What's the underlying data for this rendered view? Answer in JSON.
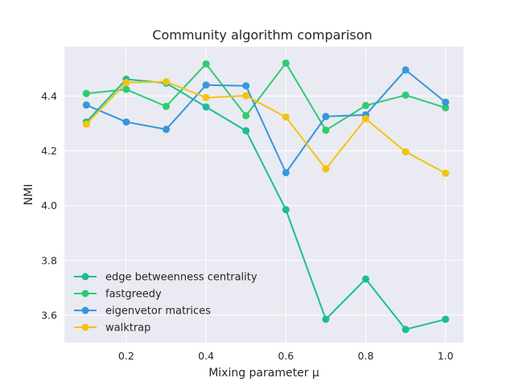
{
  "chart_data": {
    "type": "line",
    "title": "Community algorithm comparison",
    "xlabel": "Mixing parameter μ",
    "ylabel": "NMI",
    "x": [
      0.1,
      0.2,
      0.3,
      0.4,
      0.5,
      0.6,
      0.7,
      0.8,
      0.9,
      1.0
    ],
    "xlim": [
      0.045,
      1.045
    ],
    "ylim": [
      3.5,
      4.58
    ],
    "xticks": [
      0.2,
      0.4,
      0.6,
      0.8,
      1.0
    ],
    "xtick_labels": [
      "0.2",
      "0.4",
      "0.6",
      "0.8",
      "1.0"
    ],
    "yticks": [
      3.6,
      3.8,
      4.0,
      4.2,
      4.4
    ],
    "ytick_labels": [
      "3.6",
      "3.8",
      "4.0",
      "4.2",
      "4.4"
    ],
    "grid": true,
    "legend_position": "lower-left",
    "series": [
      {
        "name": "edge betweenness centrality",
        "color": "#1abc9c",
        "values": [
          4.305,
          4.461,
          4.447,
          4.36,
          4.273,
          3.985,
          3.585,
          3.732,
          3.548,
          3.585
        ]
      },
      {
        "name": "fastgreedy",
        "color": "#2ecc71",
        "values": [
          4.409,
          4.424,
          4.362,
          4.517,
          4.328,
          4.52,
          4.275,
          4.365,
          4.403,
          4.357
        ]
      },
      {
        "name": "eigenvetor matrices",
        "color": "#3498db",
        "values": [
          4.367,
          4.305,
          4.278,
          4.44,
          4.437,
          4.12,
          4.325,
          4.331,
          4.495,
          4.377
        ]
      },
      {
        "name": "walktrap",
        "color": "#f1c40f",
        "values": [
          4.297,
          4.449,
          4.452,
          4.394,
          4.401,
          4.323,
          4.134,
          4.317,
          4.196,
          4.118
        ]
      }
    ]
  }
}
